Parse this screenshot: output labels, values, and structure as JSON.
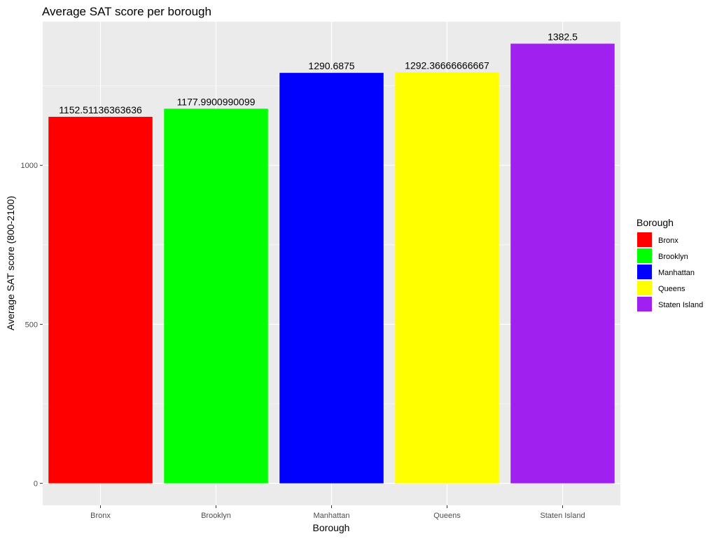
{
  "chart_data": {
    "type": "bar",
    "title": "Average SAT score per borough",
    "xlabel": "Borough",
    "ylabel": "Average SAT score (800-2100)",
    "categories": [
      "Bronx",
      "Brooklyn",
      "Manhattan",
      "Queens",
      "Staten Island"
    ],
    "values": [
      1152.51136363636,
      1177.9900990099,
      1290.6875,
      1292.36666666667,
      1382.5
    ],
    "value_labels": [
      "1152.51136363636",
      "1177.9900990099",
      "1290.6875",
      "1292.36666666667",
      "1382.5"
    ],
    "colors": [
      "#FF0000",
      "#00FF00",
      "#0000FF",
      "#FFFF00",
      "#A020F0"
    ],
    "ylim": [
      -69.125,
      1451.625
    ],
    "yticks": [
      0,
      500,
      1000
    ],
    "ytick_labels": [
      "0",
      "500",
      "1000"
    ],
    "grid": true,
    "legend": {
      "title": "Borough",
      "position": "right",
      "entries": [
        "Bronx",
        "Brooklyn",
        "Manhattan",
        "Queens",
        "Staten Island"
      ]
    },
    "panel_background": "#EBEBEB",
    "grid_color": "#FFFFFF"
  }
}
